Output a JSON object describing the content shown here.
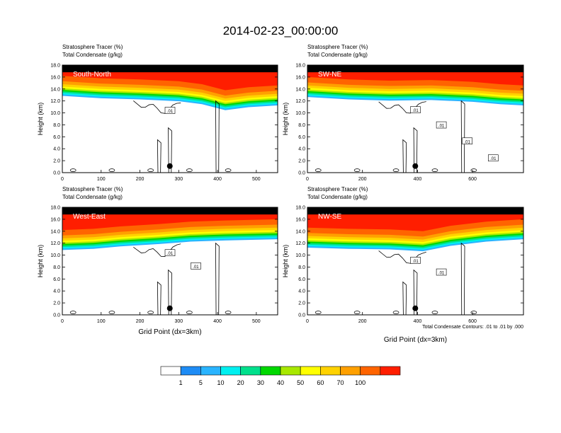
{
  "figure": {
    "title": "2014-02-23_00:00:00",
    "footnote": "Total Condensate Contours: .01 to .01 by .000"
  },
  "colors": {
    "levels": [
      "#ffffff",
      "#1e8cf5",
      "#2ab4ff",
      "#00f0f0",
      "#00e08c",
      "#00d800",
      "#a8e800",
      "#ffff00",
      "#ffd200",
      "#ffa000",
      "#ff6400",
      "#ff1e00"
    ],
    "contour": "#000000",
    "marker": "#000000"
  },
  "colorbar": {
    "labels": [
      "1",
      "5",
      "10",
      "20",
      "30",
      "40",
      "50",
      "60",
      "70",
      "100"
    ]
  },
  "chart_data": [
    {
      "type": "heatmap",
      "name": "South-North",
      "title_lines": [
        "Stratosphere Tracer   (%)",
        "Total Condensate   (g/kg)"
      ],
      "ylabel": "Height (km)",
      "xlabel": "",
      "xlim": [
        0,
        555
      ],
      "ylim": [
        0,
        18
      ],
      "xticks": [
        "0",
        "100",
        "200",
        "300",
        "400",
        "500"
      ],
      "yticks": [
        "0.0",
        "2.0",
        "4.0",
        "6.0",
        "8.0",
        "10.0",
        "12.0",
        "14.0",
        "16.0",
        "18.0"
      ],
      "tropopause_km": [
        [
          0,
          16.2
        ],
        [
          100,
          15.8
        ],
        [
          200,
          15.6
        ],
        [
          300,
          15.3
        ],
        [
          360,
          14.8
        ],
        [
          420,
          13.8
        ],
        [
          480,
          14.3
        ],
        [
          555,
          14.6
        ]
      ],
      "contour_labels": [
        ".01"
      ],
      "marker": [
        277,
        1.1
      ]
    },
    {
      "type": "heatmap",
      "name": "SW-NE",
      "title_lines": [
        "Stratosphere Tracer   (%)",
        "Total Condensate   (g/kg)"
      ],
      "ylabel": "Height (km)",
      "xlabel": "",
      "xlim": [
        0,
        785
      ],
      "ylim": [
        0,
        18
      ],
      "xticks": [
        "0",
        "200",
        "400",
        "600"
      ],
      "yticks": [
        "0.0",
        "2.0",
        "4.0",
        "6.0",
        "8.0",
        "10.0",
        "12.0",
        "14.0",
        "16.0",
        "18.0"
      ],
      "tropopause_km": [
        [
          0,
          16.0
        ],
        [
          150,
          15.6
        ],
        [
          300,
          15.4
        ],
        [
          450,
          15.5
        ],
        [
          600,
          15.2
        ],
        [
          700,
          14.8
        ],
        [
          785,
          14.6
        ]
      ],
      "contour_labels": [
        ".01",
        ".01",
        ".01",
        ".01"
      ],
      "marker": [
        392,
        1.1
      ]
    },
    {
      "type": "heatmap",
      "name": "West-East",
      "title_lines": [
        "Stratosphere Tracer   (%)",
        "Total Condensate   (g/kg)"
      ],
      "ylabel": "Height (km)",
      "xlabel": "Grid Point (dx=3km)",
      "xlim": [
        0,
        555
      ],
      "ylim": [
        0,
        18
      ],
      "xticks": [
        "0",
        "100",
        "200",
        "300",
        "400",
        "500"
      ],
      "yticks": [
        "0.0",
        "2.0",
        "4.0",
        "6.0",
        "8.0",
        "10.0",
        "12.0",
        "14.0",
        "16.0",
        "18.0"
      ],
      "tropopause_km": [
        [
          0,
          14.2
        ],
        [
          80,
          14.4
        ],
        [
          150,
          14.8
        ],
        [
          250,
          15.2
        ],
        [
          330,
          15.6
        ],
        [
          420,
          15.8
        ],
        [
          555,
          16.0
        ]
      ],
      "contour_labels": [
        ".01",
        ".01"
      ],
      "marker": [
        277,
        1.1
      ]
    },
    {
      "type": "heatmap",
      "name": "NW-SE",
      "title_lines": [
        "Stratosphere Tracer   (%)",
        "Total Condensate   (g/kg)"
      ],
      "ylabel": "Height (km)",
      "xlabel": "Grid Point (dx=3km)",
      "xlim": [
        0,
        785
      ],
      "ylim": [
        0,
        18
      ],
      "xticks": [
        "0",
        "200",
        "400",
        "600"
      ],
      "yticks": [
        "0.0",
        "2.0",
        "4.0",
        "6.0",
        "8.0",
        "10.0",
        "12.0",
        "14.0",
        "16.0",
        "18.0"
      ],
      "tropopause_km": [
        [
          0,
          14.6
        ],
        [
          150,
          14.4
        ],
        [
          300,
          14.3
        ],
        [
          420,
          14.0
        ],
        [
          520,
          14.9
        ],
        [
          650,
          15.6
        ],
        [
          785,
          16.0
        ]
      ],
      "contour_labels": [
        ".01",
        ".01"
      ],
      "marker": [
        392,
        1.1
      ]
    }
  ]
}
